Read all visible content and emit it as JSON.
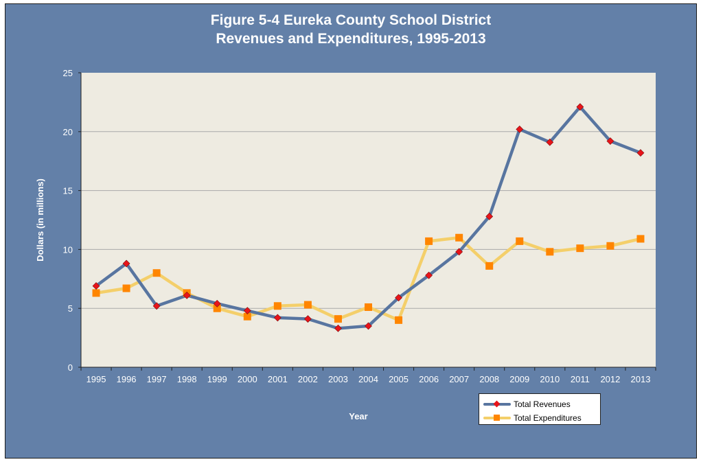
{
  "chart_data": {
    "type": "line",
    "title": "Figure 5-4 Eureka County School District",
    "subtitle": "Revenues and Expenditures, 1995-2013",
    "xlabel": "Year",
    "ylabel": "Dollars (in millions)",
    "ylim": [
      0,
      25
    ],
    "yticks": [
      0,
      5,
      10,
      15,
      20,
      25
    ],
    "categories": [
      "1995",
      "1996",
      "1997",
      "1998",
      "1999",
      "2000",
      "2001",
      "2002",
      "2003",
      "2004",
      "2005",
      "2006",
      "2007",
      "2008",
      "2009",
      "2010",
      "2011",
      "2012",
      "2013"
    ],
    "series": [
      {
        "name": "Total Revenues",
        "color": "#5875A0",
        "marker_color": "#E8141A",
        "values": [
          6.9,
          8.8,
          5.2,
          6.1,
          5.4,
          4.8,
          4.2,
          4.1,
          3.3,
          3.5,
          5.9,
          7.8,
          9.8,
          12.8,
          20.2,
          19.1,
          22.1,
          19.2,
          18.2
        ]
      },
      {
        "name": "Total Expenditures",
        "color": "#F4CF6A",
        "marker_color": "#FF8500",
        "values": [
          6.3,
          6.7,
          8.0,
          6.3,
          5.0,
          4.3,
          5.2,
          5.3,
          4.1,
          5.1,
          4.0,
          10.7,
          11.0,
          8.6,
          10.7,
          9.8,
          10.1,
          10.3,
          10.9
        ]
      }
    ],
    "grid": true,
    "legend_position": "bottom-right"
  },
  "colors": {
    "frame_background": "#6380A8",
    "plot_background": "#EEEBE1"
  }
}
